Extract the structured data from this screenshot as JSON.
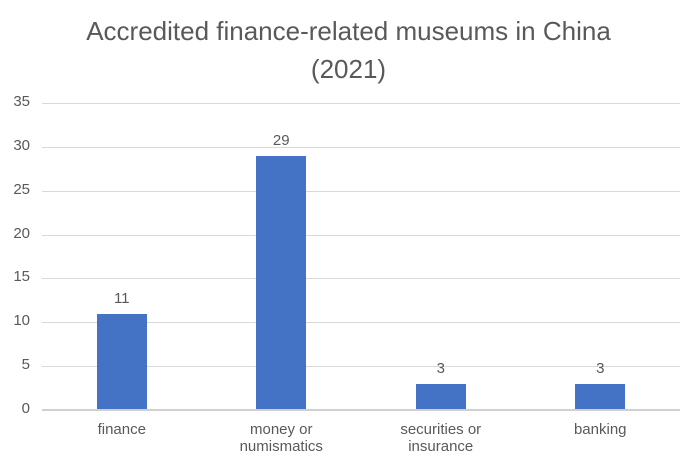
{
  "chart_data": {
    "type": "bar",
    "title": "Accredited finance-related museums in China (2021)",
    "title_lines": [
      "Accredited finance-related museums in China",
      "(2021)"
    ],
    "categories": [
      "finance",
      "money or numismatics",
      "securities or insurance",
      "banking"
    ],
    "category_lines": [
      [
        "finance"
      ],
      [
        "money or",
        "numismatics"
      ],
      [
        "securities or",
        "insurance"
      ],
      [
        "banking"
      ]
    ],
    "values": [
      11,
      29,
      3,
      3
    ],
    "data_labels": [
      "11",
      "29",
      "3",
      "3"
    ],
    "xlabel": "",
    "ylabel": "",
    "ylim": [
      0,
      35
    ],
    "yticks": [
      0,
      5,
      10,
      15,
      20,
      25,
      30,
      35
    ],
    "grid": true,
    "legend": "none",
    "bar_color": "#4472c4"
  }
}
